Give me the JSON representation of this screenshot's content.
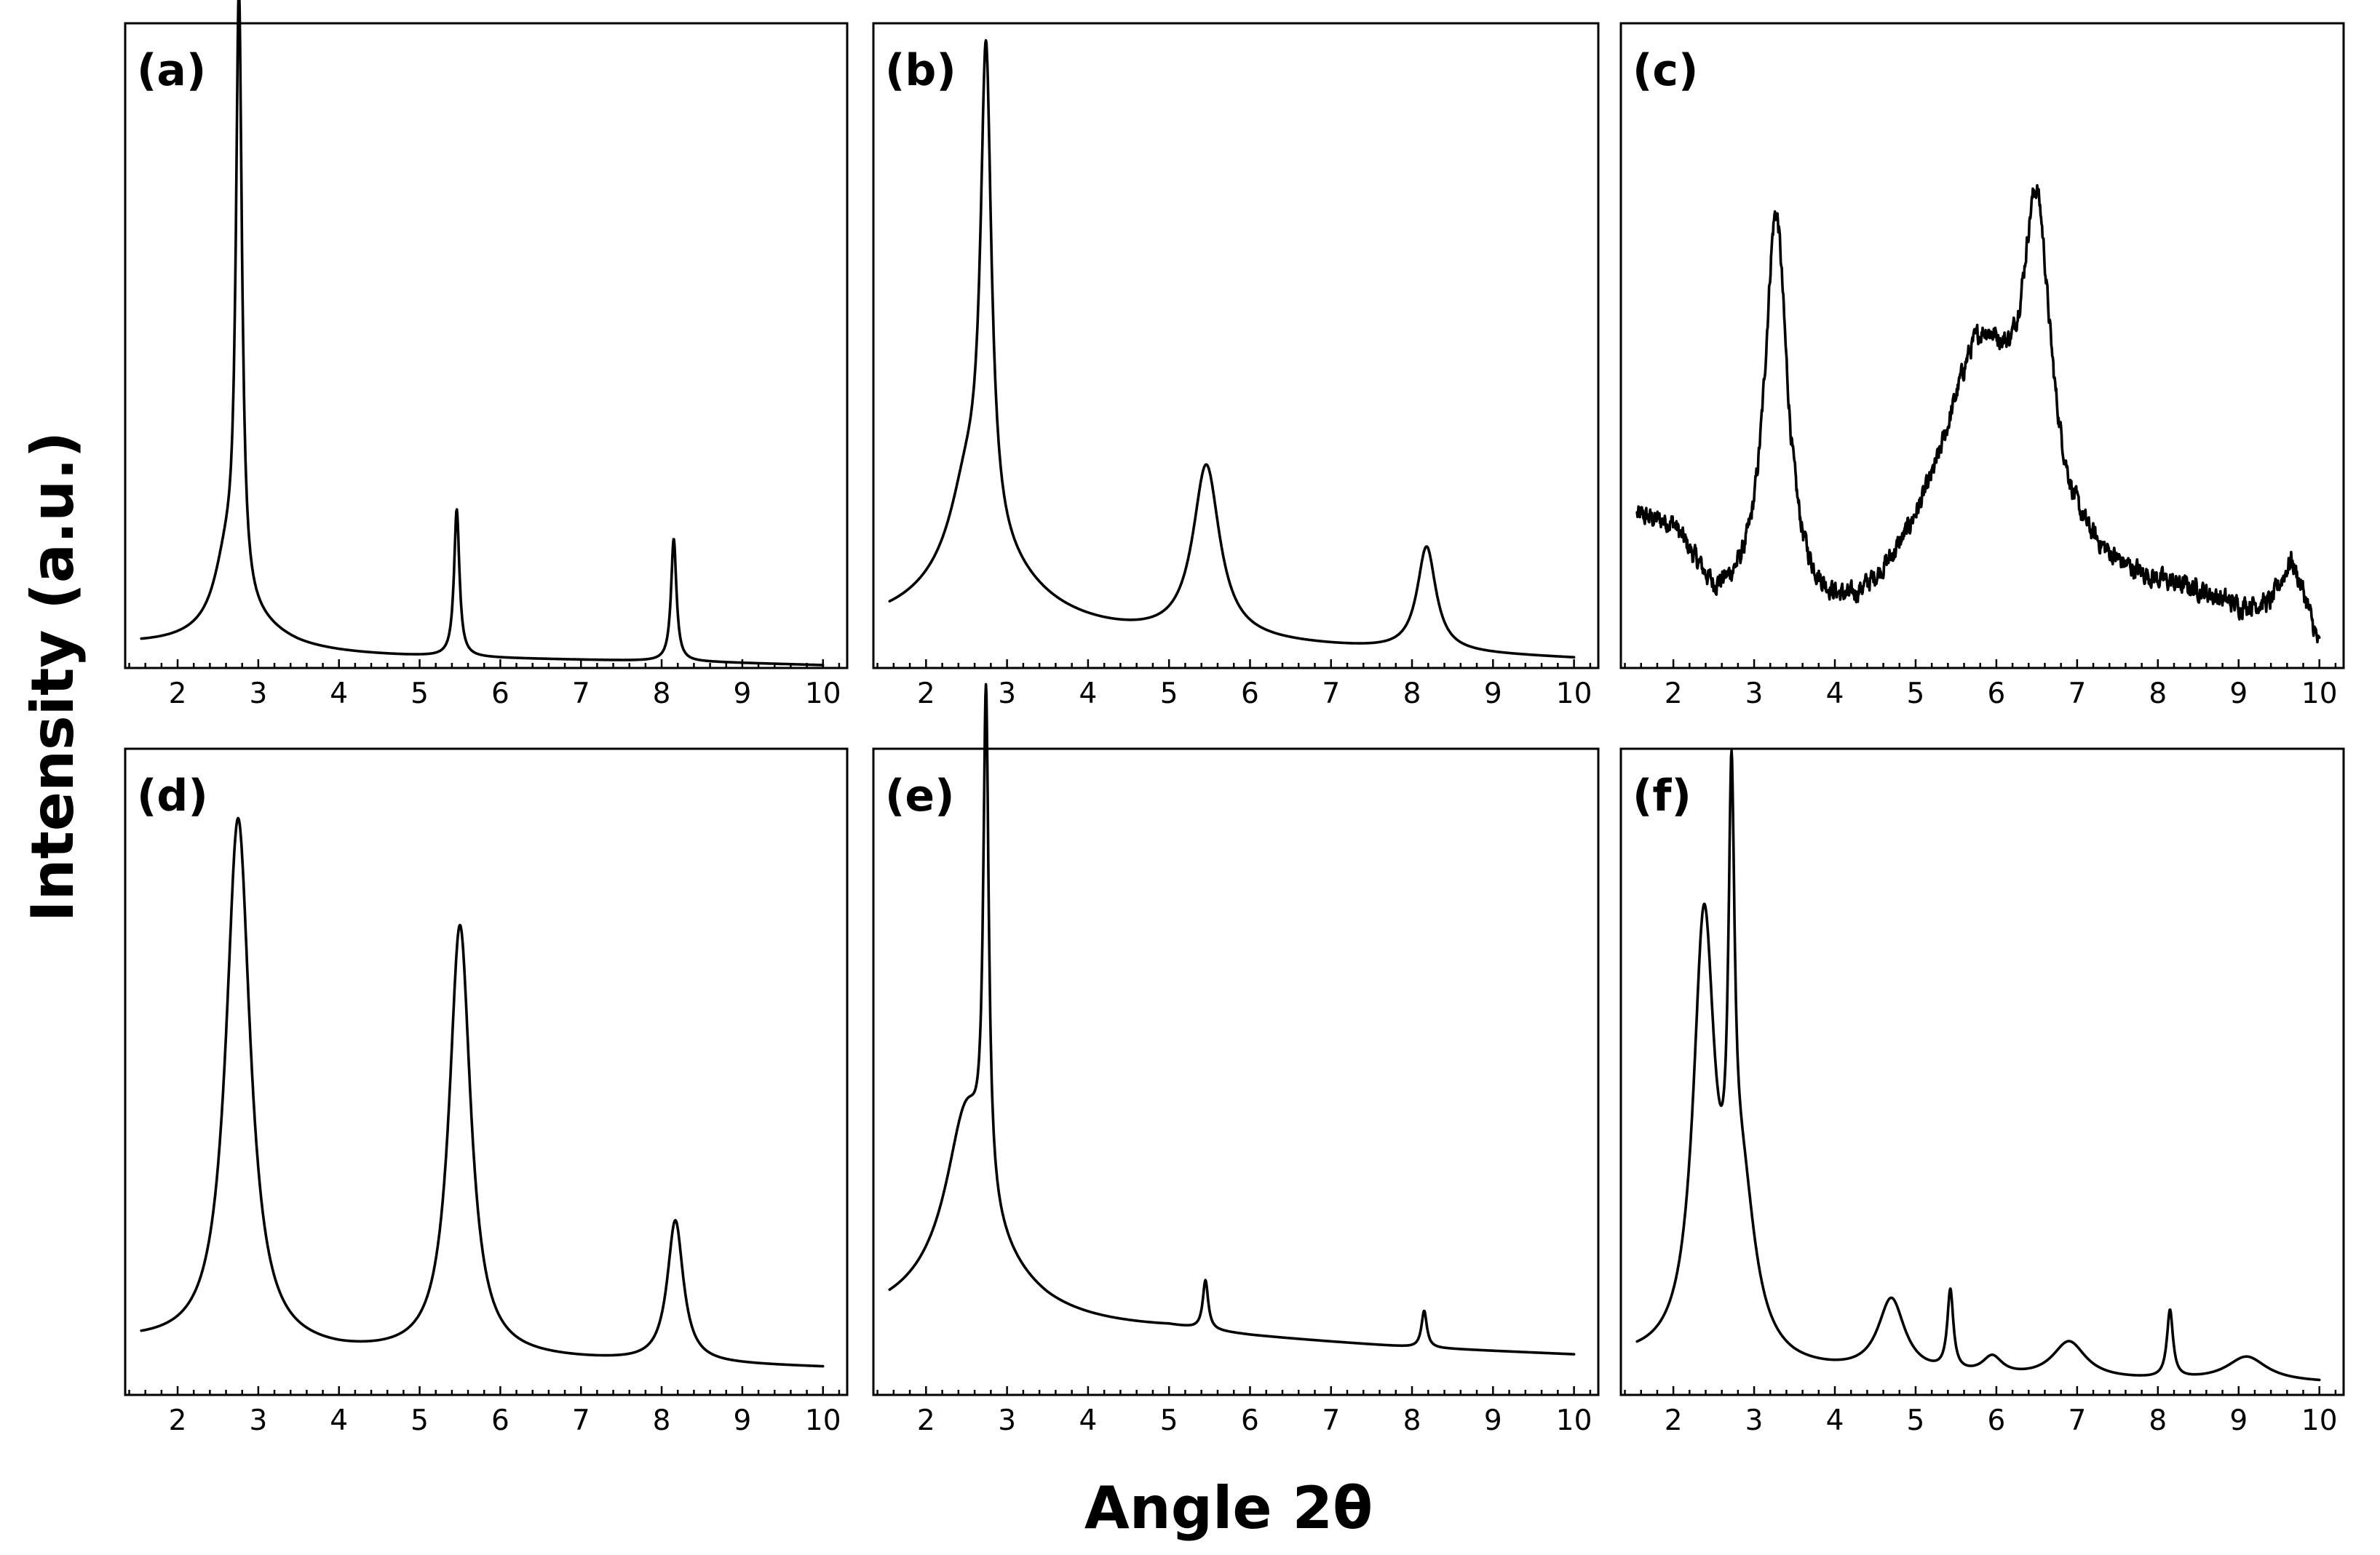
{
  "figure": {
    "x_axis_title": "Angle 2θ",
    "y_axis_title": "Intensity (a.u.)"
  },
  "chart_data": [
    {
      "type": "line",
      "panel_label": "(a)",
      "xlim": [
        1.35,
        10.3
      ],
      "ylim": [
        0,
        1
      ],
      "x_ticks": [
        "2",
        "3",
        "4",
        "5",
        "6",
        "7",
        "8",
        "9",
        "10"
      ],
      "xlabel": "Angle 2θ",
      "ylabel": "Intensity (a.u.)",
      "baseline": [
        [
          1.55,
          0.02
        ],
        [
          3.5,
          0.005
        ],
        [
          6,
          0.0
        ],
        [
          8.5,
          -0.005
        ],
        [
          10,
          -0.01
        ]
      ],
      "peaks": [
        {
          "x": 2.76,
          "h": 0.98,
          "w": 0.045
        },
        {
          "x": 2.6,
          "h": 0.1,
          "w": 0.18
        },
        {
          "x": 2.8,
          "h": 0.05,
          "w": 0.6
        },
        {
          "x": 5.46,
          "h": 0.24,
          "w": 0.04
        },
        {
          "x": 8.15,
          "h": 0.2,
          "w": 0.04
        }
      ]
    },
    {
      "type": "line",
      "panel_label": "(b)",
      "xlim": [
        1.35,
        10.3
      ],
      "ylim": [
        0,
        1
      ],
      "x_ticks": [
        "2",
        "3",
        "4",
        "5",
        "6",
        "7",
        "8",
        "9",
        "10"
      ],
      "xlabel": "Angle 2θ",
      "ylabel": "Intensity (a.u.)",
      "baseline": [
        [
          1.55,
          0.04
        ],
        [
          3.5,
          0.03
        ],
        [
          5.5,
          0.025
        ],
        [
          8,
          0.01
        ],
        [
          10,
          0.0
        ]
      ],
      "peaks": [
        {
          "x": 2.74,
          "h": 0.78,
          "w": 0.08
        },
        {
          "x": 2.5,
          "h": 0.12,
          "w": 0.25
        },
        {
          "x": 2.7,
          "h": 0.13,
          "w": 0.8
        },
        {
          "x": 5.46,
          "h": 0.28,
          "w": 0.2
        },
        {
          "x": 8.18,
          "h": 0.17,
          "w": 0.14
        }
      ]
    },
    {
      "type": "line",
      "panel_label": "(c)",
      "xlim": [
        1.35,
        10.3
      ],
      "ylim": [
        0,
        1
      ],
      "x_ticks": [
        "2",
        "3",
        "4",
        "5",
        "6",
        "7",
        "8",
        "9",
        "10"
      ],
      "xlabel": "Angle 2θ",
      "ylabel": "Intensity (a.u.)",
      "noise": 0.012,
      "baseline": [
        [
          1.55,
          0.22
        ],
        [
          2.0,
          0.2
        ],
        [
          2.5,
          0.08
        ],
        [
          3.0,
          0.06
        ],
        [
          4.2,
          0.03
        ],
        [
          5.0,
          0.08
        ],
        [
          7.2,
          0.1
        ],
        [
          8.5,
          0.09
        ],
        [
          9.0,
          0.07
        ],
        [
          9.4,
          0.08
        ],
        [
          9.65,
          0.15
        ],
        [
          9.8,
          0.1
        ],
        [
          10.0,
          0.01
        ]
      ],
      "peaks": [
        {
          "x": 3.27,
          "h": 0.65,
          "w": 0.17
        },
        {
          "x": 6.5,
          "h": 0.5,
          "w": 0.21
        },
        {
          "x": 5.8,
          "h": 0.4,
          "w": 0.6
        }
      ]
    },
    {
      "type": "line",
      "panel_label": "(d)",
      "xlim": [
        1.35,
        10.3
      ],
      "ylim": [
        0,
        1
      ],
      "x_ticks": [
        "2",
        "3",
        "4",
        "5",
        "6",
        "7",
        "8",
        "9",
        "10"
      ],
      "xlabel": "Angle 2θ",
      "ylabel": "Intensity (a.u.)",
      "baseline": [
        [
          1.55,
          0.07
        ],
        [
          4,
          0.05
        ],
        [
          7,
          0.04
        ],
        [
          10,
          0.03
        ]
      ],
      "peaks": [
        {
          "x": 2.75,
          "h": 0.86,
          "w": 0.18
        },
        {
          "x": 5.5,
          "h": 0.7,
          "w": 0.16
        },
        {
          "x": 8.17,
          "h": 0.23,
          "w": 0.12
        }
      ]
    },
    {
      "type": "line",
      "panel_label": "(e)",
      "xlim": [
        1.35,
        10.3
      ],
      "ylim": [
        0,
        1
      ],
      "x_ticks": [
        "2",
        "3",
        "4",
        "5",
        "6",
        "7",
        "8",
        "9",
        "10"
      ],
      "xlabel": "Angle 2θ",
      "ylabel": "Intensity (a.u.)",
      "baseline": [
        [
          1.55,
          0.09
        ],
        [
          3.5,
          0.08
        ],
        [
          5,
          0.085
        ],
        [
          6,
          0.075
        ],
        [
          8,
          0.06
        ],
        [
          10,
          0.05
        ]
      ],
      "peaks": [
        {
          "x": 2.74,
          "h": 0.8,
          "w": 0.04
        },
        {
          "x": 2.5,
          "h": 0.26,
          "w": 0.3
        },
        {
          "x": 2.6,
          "h": 0.1,
          "w": 0.9
        },
        {
          "x": 5.45,
          "h": 0.08,
          "w": 0.04
        },
        {
          "x": 8.15,
          "h": 0.06,
          "w": 0.04
        }
      ]
    },
    {
      "type": "line",
      "panel_label": "(f)",
      "xlim": [
        1.35,
        10.3
      ],
      "ylim": [
        0,
        1
      ],
      "x_ticks": [
        "2",
        "3",
        "4",
        "5",
        "6",
        "7",
        "8",
        "9",
        "10"
      ],
      "xlabel": "Angle 2θ",
      "ylabel": "Intensity (a.u.)",
      "baseline": [
        [
          1.55,
          0.04
        ],
        [
          3.5,
          0.02
        ],
        [
          6,
          0.01
        ],
        [
          10,
          0.005
        ]
      ],
      "peaks": [
        {
          "x": 2.38,
          "h": 0.7,
          "w": 0.16
        },
        {
          "x": 2.72,
          "h": 0.7,
          "w": 0.045
        },
        {
          "x": 2.85,
          "h": 0.25,
          "w": 0.2
        },
        {
          "x": 4.7,
          "h": 0.12,
          "w": 0.2
        },
        {
          "x": 5.43,
          "h": 0.13,
          "w": 0.045
        },
        {
          "x": 5.95,
          "h": 0.03,
          "w": 0.15
        },
        {
          "x": 6.9,
          "h": 0.06,
          "w": 0.25
        },
        {
          "x": 8.15,
          "h": 0.11,
          "w": 0.045
        },
        {
          "x": 9.1,
          "h": 0.04,
          "w": 0.3
        }
      ]
    }
  ]
}
